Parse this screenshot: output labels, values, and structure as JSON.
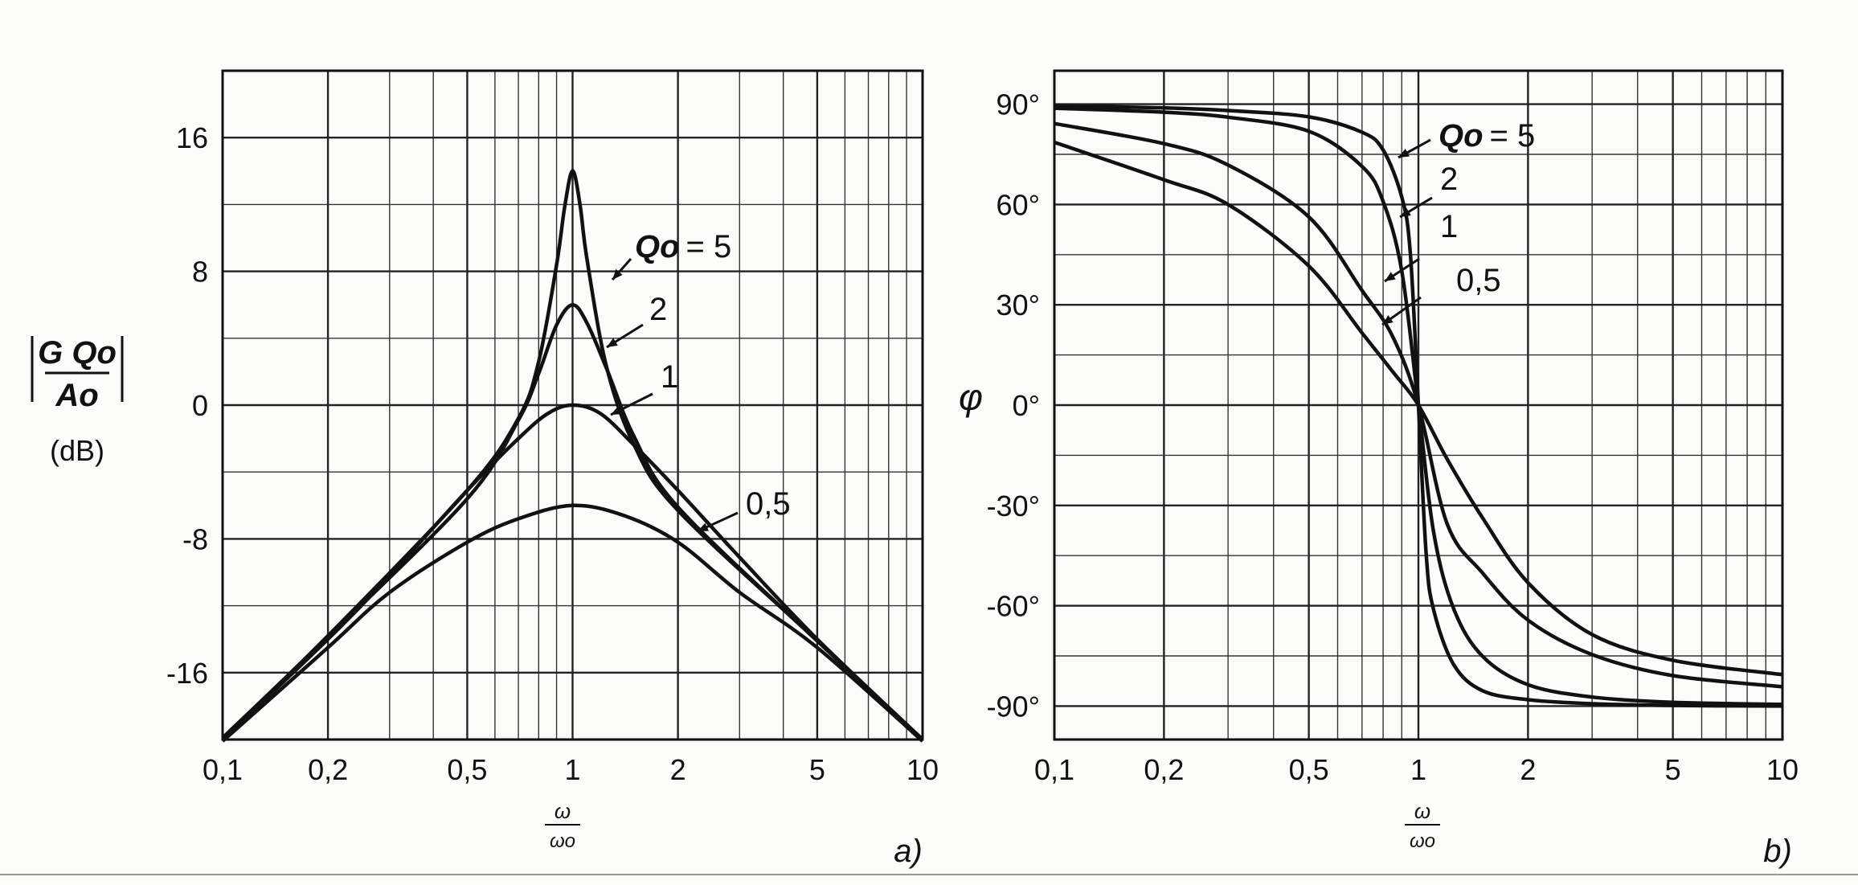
{
  "chart_data": [
    {
      "type": "line",
      "panel_label": "a)",
      "x_scale": "log",
      "xlim": [
        0.1,
        10
      ],
      "ylim": [
        -20,
        20
      ],
      "grid": true,
      "xlabel_num": "ω",
      "xlabel_den": "ωo",
      "ylabel": {
        "top": "G Qo",
        "bottom": "Ao",
        "unit": "(dB)"
      },
      "x_ticks": [
        "0,1",
        "0,2",
        "0,5",
        "1",
        "2",
        "5",
        "10"
      ],
      "y_ticks": [
        "16",
        "8",
        "0",
        "-8",
        "-16"
      ],
      "series": [
        {
          "name": "Qo = 5",
          "x": [
            0.1,
            0.2,
            0.5,
            0.7,
            0.8,
            0.9,
            0.95,
            1.0,
            1.05,
            1.1,
            1.25,
            1.5,
            2,
            5,
            10
          ],
          "y": [
            -19.9,
            -13.8,
            -5.1,
            -0.8,
            2.6,
            8.4,
            11.9,
            14.0,
            12.0,
            8.7,
            2.3,
            -2.4,
            -6.3,
            -14.1,
            -20.0
          ]
        },
        {
          "name": "2",
          "x": [
            0.1,
            0.2,
            0.5,
            0.7,
            0.8,
            0.9,
            1.0,
            1.1,
            1.25,
            1.5,
            2,
            5,
            10
          ],
          "y": [
            -20.0,
            -13.9,
            -5.6,
            -0.9,
            1.9,
            4.8,
            6.0,
            4.9,
            2.2,
            -1.9,
            -6.1,
            -14.1,
            -20.0
          ]
        },
        {
          "name": "1",
          "x": [
            0.1,
            0.2,
            0.3,
            0.5,
            0.7,
            0.85,
            1.0,
            1.2,
            1.5,
            2,
            3,
            5,
            10
          ],
          "y": [
            -20.0,
            -14.0,
            -10.2,
            -5.1,
            -2.0,
            -0.5,
            0.0,
            -0.5,
            -2.4,
            -5.1,
            -9.1,
            -14.0,
            -20.0
          ]
        },
        {
          "name": "0,5",
          "x": [
            0.1,
            0.2,
            0.3,
            0.5,
            0.7,
            1.0,
            1.4,
            2,
            3,
            5,
            10
          ],
          "y": [
            -20.1,
            -14.5,
            -11.2,
            -8.2,
            -6.8,
            -6.0,
            -6.6,
            -8.2,
            -11.2,
            -14.5,
            -20.1
          ]
        }
      ],
      "annotations": [
        "Qo",
        "= 5",
        "2",
        "1",
        "0,5"
      ]
    },
    {
      "type": "line",
      "panel_label": "b)",
      "x_scale": "log",
      "xlim": [
        0.1,
        10
      ],
      "ylim": [
        -100,
        100
      ],
      "grid": true,
      "xlabel_num": "ω",
      "xlabel_den": "ωo",
      "ylabel": "φ",
      "x_ticks": [
        "0,1",
        "0,2",
        "0,5",
        "1",
        "2",
        "5",
        "10"
      ],
      "y_ticks": [
        "90°",
        "60°",
        "30°",
        "0°",
        "-30°",
        "-60°",
        "-90°"
      ],
      "series": [
        {
          "name": "Qo = 5",
          "x": [
            0.1,
            0.2,
            0.3,
            0.5,
            0.7,
            0.8,
            0.9,
            0.95,
            1.0,
            1.05,
            1.1,
            1.25,
            1.5,
            2,
            3,
            5,
            10
          ],
          "y": [
            89.5,
            88.9,
            88.1,
            86.2,
            81.6,
            76.3,
            62.2,
            45.5,
            0,
            -44.3,
            -61.1,
            -77.6,
            -85.4,
            -88.1,
            -89.3,
            -89.8,
            -90
          ]
        },
        {
          "name": "2",
          "x": [
            0.1,
            0.2,
            0.3,
            0.5,
            0.7,
            0.8,
            0.9,
            1.0,
            1.1,
            1.25,
            1.5,
            2,
            3,
            5,
            10
          ],
          "y": [
            88.8,
            87.6,
            86.1,
            81.9,
            71.4,
            60.9,
            40.1,
            0,
            -37.8,
            -60.9,
            -75.1,
            -83.6,
            -87.3,
            -88.9,
            -89.5
          ]
        },
        {
          "name": "1",
          "x": [
            0.1,
            0.2,
            0.3,
            0.5,
            0.7,
            0.85,
            1.0,
            1.2,
            1.5,
            2,
            3,
            5,
            10
          ],
          "y": [
            84.2,
            78.2,
            71.8,
            56.3,
            34.3,
            20.5,
            0,
            -35.6,
            -50.2,
            -64.3,
            -74.6,
            -80.9,
            -84.2
          ]
        },
        {
          "name": "0,5",
          "x": [
            0.1,
            0.2,
            0.3,
            0.5,
            0.7,
            0.85,
            1.0,
            1.2,
            1.5,
            2,
            3,
            5,
            10
          ],
          "y": [
            78.6,
            67.4,
            60.0,
            41.6,
            21.6,
            10.0,
            0,
            -16.2,
            -33.7,
            -53.1,
            -68.6,
            -76.3,
            -80.6
          ]
        }
      ],
      "annotations": [
        "Qo",
        "= 5",
        "2",
        "1",
        "0,5"
      ]
    }
  ]
}
